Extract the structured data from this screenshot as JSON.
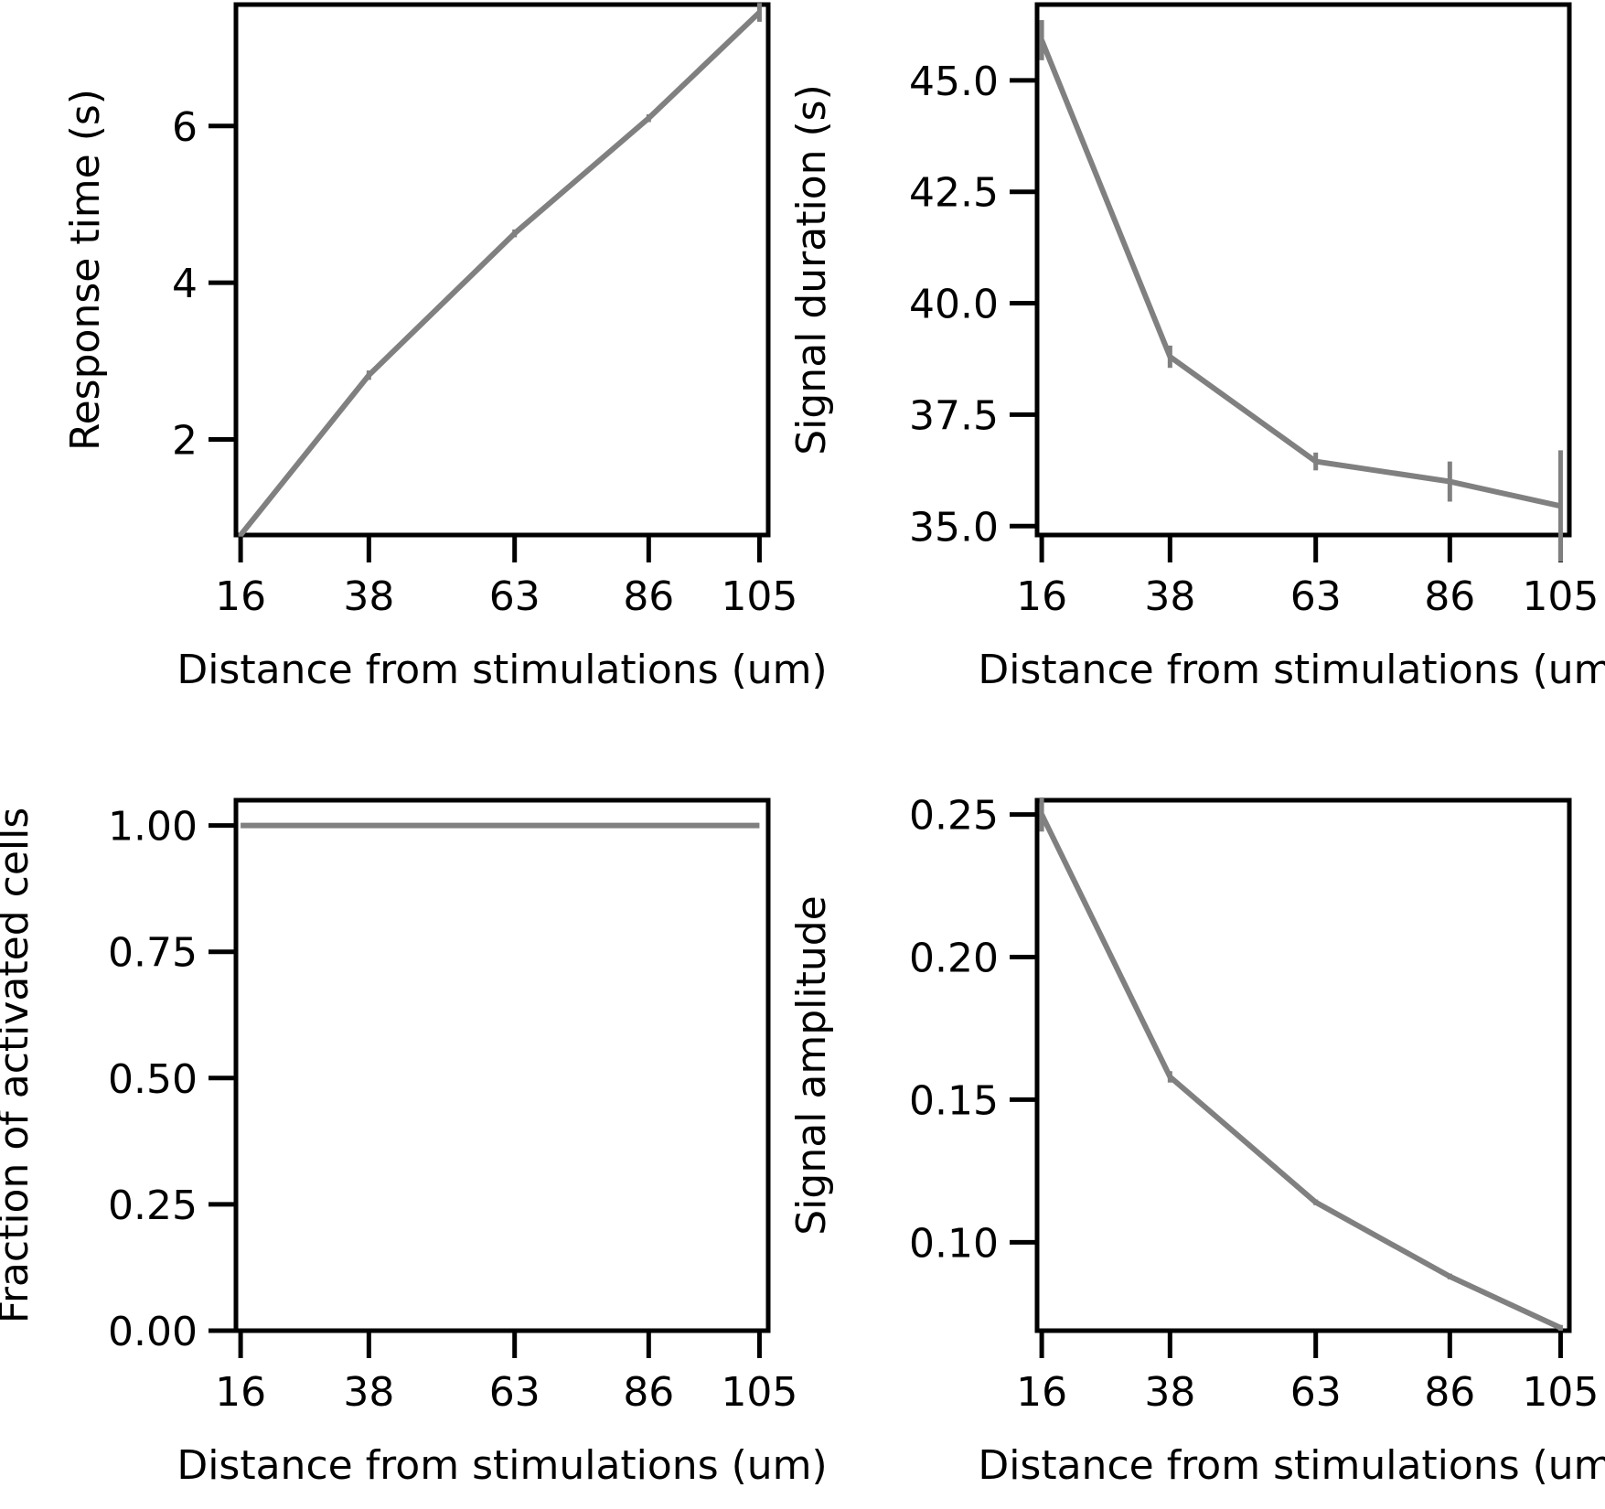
{
  "colors": {
    "line": "#808080",
    "axes": "#000000",
    "background": "#ffffff"
  },
  "chart_data": [
    {
      "id": "response-time",
      "type": "line",
      "xlabel": "Distance from stimulations (um)",
      "ylabel": "Response time (s)",
      "x": [
        16,
        38,
        63,
        86,
        105
      ],
      "x_tick_labels": [
        "16",
        "38",
        "63",
        "86",
        "105"
      ],
      "y_ticks": [
        2,
        4,
        6
      ],
      "y_tick_labels": [
        "2",
        "4",
        "6"
      ],
      "ylim": [
        0.78,
        7.55
      ],
      "series": [
        {
          "values": [
            0.78,
            2.82,
            4.63,
            6.1,
            7.45
          ],
          "errors": [
            0.02,
            0.06,
            0.05,
            0.05,
            0.12
          ]
        }
      ]
    },
    {
      "id": "signal-duration",
      "type": "line",
      "xlabel": "Distance from stimulations (um)",
      "ylabel": "Signal duration (s)",
      "x": [
        16,
        38,
        63,
        86,
        105
      ],
      "x_tick_labels": [
        "16",
        "38",
        "63",
        "86",
        "105"
      ],
      "y_ticks": [
        35.0,
        37.5,
        40.0,
        42.5,
        45.0
      ],
      "y_tick_labels": [
        "35.0",
        "37.5",
        "40.0",
        "42.5",
        "45.0"
      ],
      "ylim": [
        34.8,
        46.7
      ],
      "series": [
        {
          "values": [
            45.9,
            38.8,
            36.45,
            36.0,
            35.45
          ],
          "errors": [
            0.45,
            0.25,
            0.2,
            0.45,
            1.25
          ]
        }
      ]
    },
    {
      "id": "fraction-activated",
      "type": "line",
      "xlabel": "Distance from stimulations (um)",
      "ylabel": "Fraction of activated cells",
      "x": [
        16,
        38,
        63,
        86,
        105
      ],
      "x_tick_labels": [
        "16",
        "38",
        "63",
        "86",
        "105"
      ],
      "y_ticks": [
        0.0,
        0.25,
        0.5,
        0.75,
        1.0
      ],
      "y_tick_labels": [
        "0.00",
        "0.25",
        "0.50",
        "0.75",
        "1.00"
      ],
      "ylim": [
        0.0,
        1.05
      ],
      "series": [
        {
          "values": [
            1.0,
            1.0,
            1.0,
            1.0,
            1.0
          ],
          "errors": [
            0,
            0,
            0,
            0,
            0
          ]
        }
      ]
    },
    {
      "id": "signal-amplitude",
      "type": "line",
      "xlabel": "Distance from stimulations (um)",
      "ylabel": "Signal amplitude",
      "x": [
        16,
        38,
        63,
        86,
        105
      ],
      "x_tick_labels": [
        "16",
        "38",
        "63",
        "86",
        "105"
      ],
      "y_ticks": [
        0.1,
        0.15,
        0.2,
        0.25
      ],
      "y_tick_labels": [
        "0.10",
        "0.15",
        "0.20",
        "0.25"
      ],
      "ylim": [
        0.069,
        0.255
      ],
      "series": [
        {
          "values": [
            0.25,
            0.158,
            0.114,
            0.088,
            0.07
          ],
          "errors": [
            0.006,
            0.002,
            0.001,
            0.001,
            0.001
          ]
        }
      ]
    }
  ]
}
